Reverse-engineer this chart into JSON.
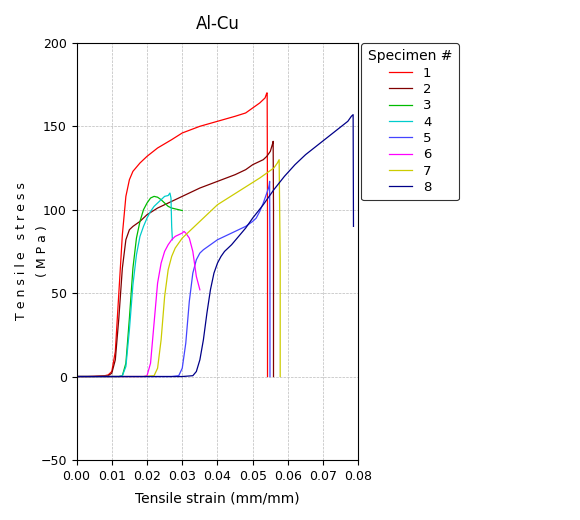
{
  "title": "Al-Cu",
  "xlabel": "Tensile strain (mm/mm)",
  "ylabel_line1": "T e n s i l e   s t r e s s",
  "ylabel_line2": "( M P a )",
  "xlim": [
    0.0,
    0.08
  ],
  "ylim": [
    -50,
    200
  ],
  "xticks": [
    0.0,
    0.01,
    0.02,
    0.03,
    0.04,
    0.05,
    0.06,
    0.07,
    0.08
  ],
  "yticks": [
    -50,
    0,
    50,
    100,
    150,
    200
  ],
  "legend_title": "Specimen #",
  "background_color": "#ffffff",
  "grid_color": "#aaaaaa",
  "curves": {
    "1": {
      "color": "#ff0000",
      "points": [
        [
          0.0,
          0.0
        ],
        [
          0.003,
          0.0
        ],
        [
          0.008,
          0.5
        ],
        [
          0.009,
          1.0
        ],
        [
          0.01,
          3.0
        ],
        [
          0.011,
          15.0
        ],
        [
          0.012,
          50.0
        ],
        [
          0.013,
          85.0
        ],
        [
          0.014,
          108.0
        ],
        [
          0.015,
          118.0
        ],
        [
          0.016,
          123.0
        ],
        [
          0.018,
          128.0
        ],
        [
          0.02,
          132.0
        ],
        [
          0.023,
          137.0
        ],
        [
          0.027,
          142.0
        ],
        [
          0.03,
          146.0
        ],
        [
          0.035,
          150.0
        ],
        [
          0.04,
          153.0
        ],
        [
          0.045,
          156.0
        ],
        [
          0.048,
          158.0
        ],
        [
          0.05,
          161.0
        ],
        [
          0.052,
          164.0
        ],
        [
          0.0535,
          167.0
        ],
        [
          0.054,
          170.0
        ],
        [
          0.0541,
          170.0
        ],
        [
          0.0542,
          95.0
        ],
        [
          0.0542,
          0.0
        ]
      ]
    },
    "2": {
      "color": "#800000",
      "points": [
        [
          0.0,
          0.0
        ],
        [
          0.005,
          0.0
        ],
        [
          0.009,
          0.5
        ],
        [
          0.01,
          2.0
        ],
        [
          0.011,
          10.0
        ],
        [
          0.012,
          35.0
        ],
        [
          0.013,
          65.0
        ],
        [
          0.014,
          82.0
        ],
        [
          0.015,
          88.0
        ],
        [
          0.016,
          90.0
        ],
        [
          0.018,
          93.0
        ],
        [
          0.02,
          97.0
        ],
        [
          0.023,
          101.0
        ],
        [
          0.027,
          105.0
        ],
        [
          0.03,
          108.0
        ],
        [
          0.035,
          113.0
        ],
        [
          0.04,
          117.0
        ],
        [
          0.045,
          121.0
        ],
        [
          0.048,
          124.0
        ],
        [
          0.05,
          127.0
        ],
        [
          0.053,
          130.0
        ],
        [
          0.054,
          132.0
        ],
        [
          0.055,
          135.0
        ],
        [
          0.0557,
          140.0
        ],
        [
          0.0558,
          141.0
        ],
        [
          0.0559,
          100.0
        ],
        [
          0.0559,
          0.0
        ]
      ]
    },
    "3": {
      "color": "#00bb00",
      "points": [
        [
          0.0,
          0.0
        ],
        [
          0.008,
          0.0
        ],
        [
          0.012,
          0.0
        ],
        [
          0.013,
          0.5
        ],
        [
          0.014,
          8.0
        ],
        [
          0.015,
          35.0
        ],
        [
          0.016,
          65.0
        ],
        [
          0.017,
          83.0
        ],
        [
          0.018,
          93.0
        ],
        [
          0.019,
          100.0
        ],
        [
          0.02,
          104.0
        ],
        [
          0.021,
          107.0
        ],
        [
          0.022,
          108.0
        ],
        [
          0.023,
          107.5
        ],
        [
          0.024,
          106.0
        ],
        [
          0.025,
          104.0
        ],
        [
          0.026,
          102.0
        ],
        [
          0.027,
          101.0
        ],
        [
          0.028,
          100.5
        ],
        [
          0.029,
          100.0
        ],
        [
          0.03,
          99.5
        ]
      ]
    },
    "4": {
      "color": "#00cccc",
      "points": [
        [
          0.0,
          0.0
        ],
        [
          0.008,
          0.0
        ],
        [
          0.012,
          0.0
        ],
        [
          0.013,
          0.5
        ],
        [
          0.014,
          6.0
        ],
        [
          0.015,
          28.0
        ],
        [
          0.016,
          55.0
        ],
        [
          0.017,
          73.0
        ],
        [
          0.018,
          84.0
        ],
        [
          0.019,
          90.0
        ],
        [
          0.02,
          95.0
        ],
        [
          0.021,
          99.0
        ],
        [
          0.022,
          102.0
        ],
        [
          0.023,
          104.0
        ],
        [
          0.024,
          106.0
        ],
        [
          0.025,
          108.0
        ],
        [
          0.026,
          108.5
        ],
        [
          0.0265,
          110.0
        ],
        [
          0.0268,
          107.0
        ],
        [
          0.027,
          90.0
        ],
        [
          0.0272,
          82.0
        ]
      ]
    },
    "5": {
      "color": "#4444ff",
      "points": [
        [
          0.0,
          0.0
        ],
        [
          0.01,
          0.0
        ],
        [
          0.018,
          0.0
        ],
        [
          0.023,
          0.0
        ],
        [
          0.027,
          0.0
        ],
        [
          0.029,
          0.5
        ],
        [
          0.03,
          5.0
        ],
        [
          0.031,
          20.0
        ],
        [
          0.032,
          45.0
        ],
        [
          0.033,
          62.0
        ],
        [
          0.034,
          70.0
        ],
        [
          0.035,
          74.0
        ],
        [
          0.036,
          76.0
        ],
        [
          0.038,
          79.0
        ],
        [
          0.04,
          82.0
        ],
        [
          0.042,
          84.0
        ],
        [
          0.044,
          86.0
        ],
        [
          0.046,
          88.0
        ],
        [
          0.048,
          90.0
        ],
        [
          0.05,
          93.0
        ],
        [
          0.051,
          95.0
        ],
        [
          0.052,
          99.0
        ],
        [
          0.053,
          104.0
        ],
        [
          0.054,
          110.0
        ],
        [
          0.0545,
          113.0
        ],
        [
          0.0547,
          115.0
        ],
        [
          0.0548,
          117.0
        ],
        [
          0.0549,
          75.0
        ],
        [
          0.0549,
          0.0
        ]
      ]
    },
    "6": {
      "color": "#ff00ff",
      "points": [
        [
          0.0,
          0.0
        ],
        [
          0.01,
          0.0
        ],
        [
          0.016,
          0.0
        ],
        [
          0.019,
          0.0
        ],
        [
          0.02,
          0.5
        ],
        [
          0.021,
          8.0
        ],
        [
          0.022,
          32.0
        ],
        [
          0.023,
          56.0
        ],
        [
          0.024,
          68.0
        ],
        [
          0.025,
          75.0
        ],
        [
          0.026,
          79.0
        ],
        [
          0.027,
          82.0
        ],
        [
          0.028,
          84.0
        ],
        [
          0.029,
          85.0
        ],
        [
          0.03,
          86.0
        ],
        [
          0.0305,
          87.0
        ],
        [
          0.031,
          86.0
        ],
        [
          0.032,
          83.0
        ],
        [
          0.033,
          75.0
        ],
        [
          0.034,
          60.0
        ],
        [
          0.035,
          52.0
        ]
      ]
    },
    "7": {
      "color": "#cccc00",
      "points": [
        [
          0.0,
          0.0
        ],
        [
          0.012,
          0.0
        ],
        [
          0.019,
          0.0
        ],
        [
          0.022,
          0.5
        ],
        [
          0.023,
          5.0
        ],
        [
          0.024,
          22.0
        ],
        [
          0.025,
          48.0
        ],
        [
          0.026,
          64.0
        ],
        [
          0.027,
          72.0
        ],
        [
          0.028,
          77.0
        ],
        [
          0.029,
          80.0
        ],
        [
          0.03,
          83.0
        ],
        [
          0.032,
          87.0
        ],
        [
          0.034,
          91.0
        ],
        [
          0.036,
          95.0
        ],
        [
          0.038,
          99.0
        ],
        [
          0.04,
          103.0
        ],
        [
          0.043,
          107.0
        ],
        [
          0.046,
          111.0
        ],
        [
          0.049,
          115.0
        ],
        [
          0.052,
          119.0
        ],
        [
          0.054,
          122.0
        ],
        [
          0.056,
          125.0
        ],
        [
          0.057,
          128.0
        ],
        [
          0.0575,
          130.0
        ],
        [
          0.0578,
          70.0
        ],
        [
          0.0578,
          0.0
        ]
      ]
    },
    "8": {
      "color": "#000088",
      "points": [
        [
          0.0,
          0.0
        ],
        [
          0.015,
          0.0
        ],
        [
          0.025,
          0.0
        ],
        [
          0.03,
          0.0
        ],
        [
          0.033,
          0.5
        ],
        [
          0.034,
          3.0
        ],
        [
          0.035,
          10.0
        ],
        [
          0.036,
          22.0
        ],
        [
          0.037,
          38.0
        ],
        [
          0.038,
          52.0
        ],
        [
          0.039,
          62.0
        ],
        [
          0.04,
          68.0
        ],
        [
          0.041,
          72.0
        ],
        [
          0.042,
          75.0
        ],
        [
          0.044,
          79.0
        ],
        [
          0.046,
          84.0
        ],
        [
          0.048,
          89.0
        ],
        [
          0.05,
          95.0
        ],
        [
          0.053,
          103.0
        ],
        [
          0.056,
          112.0
        ],
        [
          0.059,
          120.0
        ],
        [
          0.062,
          127.0
        ],
        [
          0.065,
          133.0
        ],
        [
          0.068,
          138.0
        ],
        [
          0.071,
          143.0
        ],
        [
          0.074,
          148.0
        ],
        [
          0.077,
          153.0
        ],
        [
          0.078,
          156.0
        ],
        [
          0.0785,
          157.0
        ],
        [
          0.0786,
          90.0
        ]
      ]
    }
  }
}
